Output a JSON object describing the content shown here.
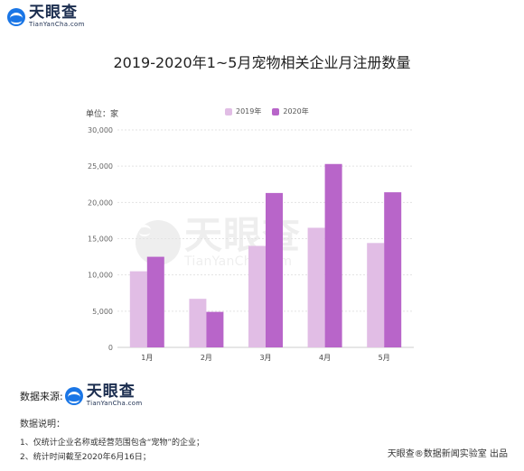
{
  "brand": {
    "name": "天眼查",
    "domain": "TianYanCha.com"
  },
  "title": "2019-2020年1~5月宠物相关企业月注册数量",
  "unit_label": "单位：家",
  "legend": [
    {
      "label": "2019年",
      "color": "#e1bde5"
    },
    {
      "label": "2020年",
      "color": "#b865c9"
    }
  ],
  "chart_data": {
    "type": "bar",
    "categories": [
      "1月",
      "2月",
      "3月",
      "4月",
      "5月"
    ],
    "series": [
      {
        "name": "2019年",
        "values": [
          10500,
          6700,
          14000,
          16500,
          14400
        ],
        "color": "#e1bde5"
      },
      {
        "name": "2020年",
        "values": [
          12500,
          4900,
          21300,
          25300,
          21400
        ],
        "color": "#b865c9"
      }
    ],
    "ylim": [
      0,
      30000
    ],
    "yticks": [
      "0",
      "5,000",
      "10,000",
      "15,000",
      "20,000",
      "25,000",
      "30,000"
    ],
    "grid": true,
    "legend_position": "top"
  },
  "footer": {
    "source_label": "数据来源:",
    "notes_title": "数据说明：",
    "notes": [
      "1、仅统计企业名称或经营范围包含“宠物”的企业；",
      "2、统计时间截至2020年6月16日；"
    ],
    "credit": "天眼查®数据新闻实验室 出品"
  }
}
